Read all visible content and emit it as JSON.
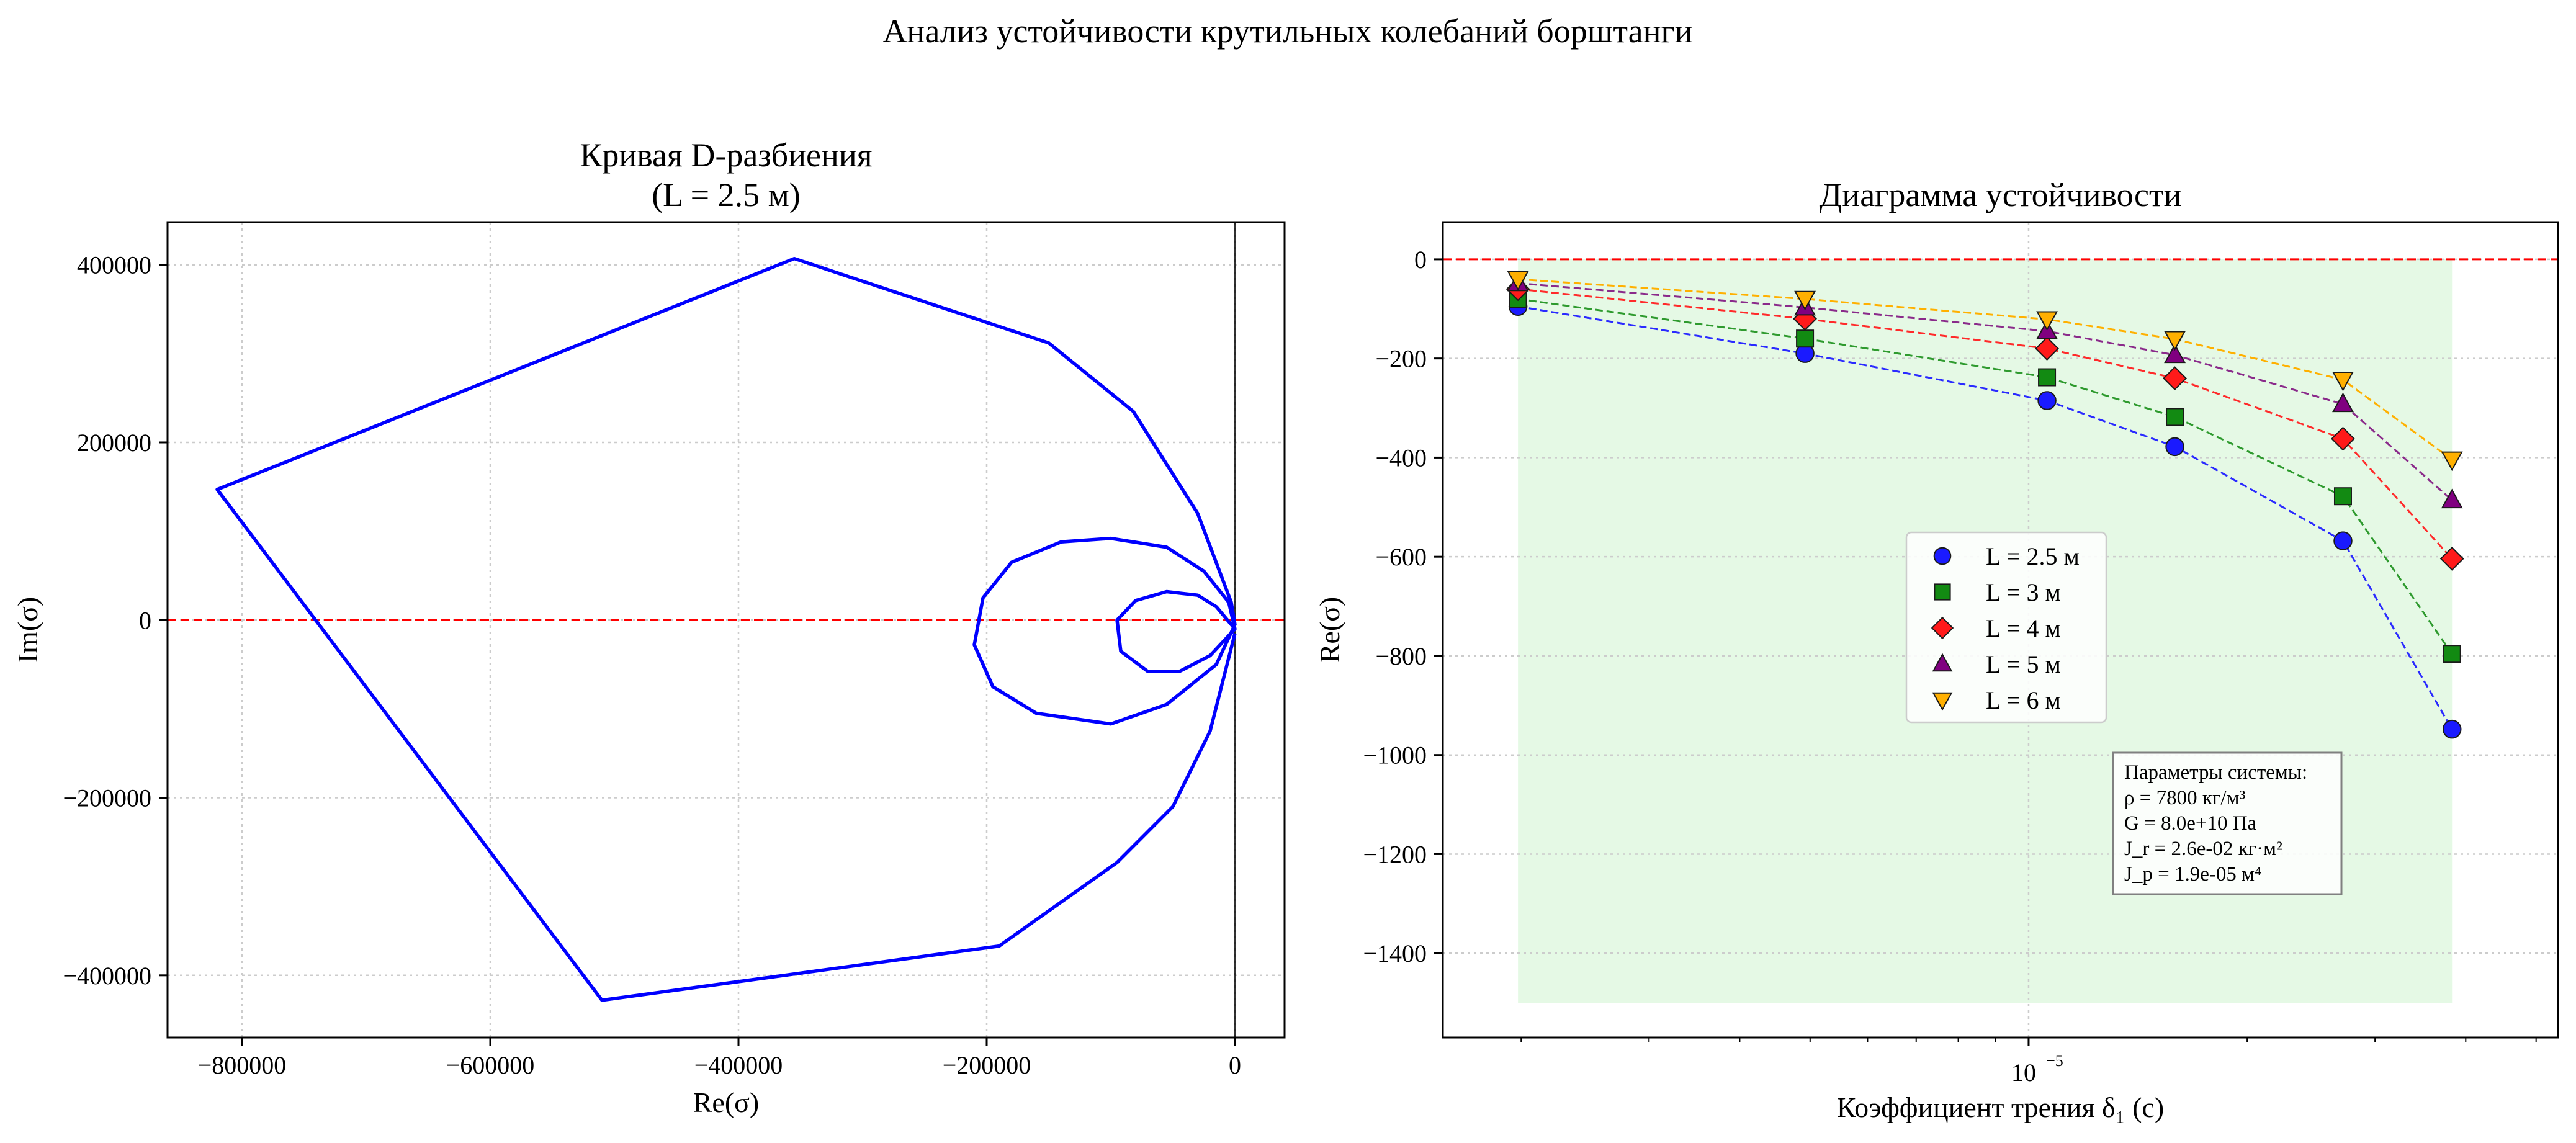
{
  "suptitle": "Анализ устойчивости крутильных колебаний борштанги",
  "chart_data": [
    {
      "type": "line",
      "title_lines": [
        "Кривая D-разбиения",
        "(L = 2.5 м)"
      ],
      "xlabel": "Re(σ)",
      "ylabel": "Im(σ)",
      "xlim": [
        -860000,
        40000
      ],
      "ylim": [
        -470000,
        448000
      ],
      "xticks": [
        {
          "v": -800000,
          "label": "−800000"
        },
        {
          "v": -600000,
          "label": "−600000"
        },
        {
          "v": -400000,
          "label": "−400000"
        },
        {
          "v": -200000,
          "label": "−200000"
        },
        {
          "v": 0,
          "label": "0"
        }
      ],
      "yticks": [
        {
          "v": 400000,
          "label": "400000"
        },
        {
          "v": 200000,
          "label": "200000"
        },
        {
          "v": 0,
          "label": "0"
        },
        {
          "v": -200000,
          "label": "−200000"
        },
        {
          "v": -400000,
          "label": "−400000"
        }
      ],
      "grid": true,
      "reference_lines": [
        {
          "axis": "y",
          "value": 0,
          "color": "#ff0000",
          "style": "dashed"
        },
        {
          "axis": "x",
          "value": 0,
          "color": "#000000",
          "style": "solid"
        }
      ],
      "series": [
        {
          "color": "#0000ff",
          "points": [
            [
              0,
              -15000
            ],
            [
              -20000,
              -125000
            ],
            [
              -50000,
              -210000
            ],
            [
              -95000,
              -273000
            ],
            [
              -190000,
              -367000
            ],
            [
              -510000,
              -428000
            ],
            [
              -820000,
              147000
            ],
            [
              -355000,
              407000
            ],
            [
              -150000,
              312000
            ],
            [
              -82000,
              235000
            ],
            [
              -30000,
              120000
            ],
            [
              -3000,
              20000
            ],
            [
              0,
              -5000
            ],
            [
              -15000,
              -50000
            ],
            [
              -55000,
              -95000
            ],
            [
              -100000,
              -117000
            ],
            [
              -160000,
              -105000
            ],
            [
              -195000,
              -75000
            ],
            [
              -210000,
              -28000
            ],
            [
              -203000,
              25000
            ],
            [
              -180000,
              65000
            ],
            [
              -140000,
              88000
            ],
            [
              -100000,
              92000
            ],
            [
              -55000,
              82000
            ],
            [
              -25000,
              55000
            ],
            [
              -5000,
              20000
            ],
            [
              0,
              -10000
            ],
            [
              -15000,
              15000
            ],
            [
              -30000,
              28000
            ],
            [
              -55000,
              32000
            ],
            [
              -80000,
              22000
            ],
            [
              -95000,
              0
            ],
            [
              -92000,
              -35000
            ],
            [
              -70000,
              -58000
            ],
            [
              -45000,
              -58000
            ],
            [
              -20000,
              -40000
            ],
            [
              0,
              -10000
            ]
          ]
        }
      ]
    },
    {
      "type": "scatter",
      "title_lines": [
        "Диаграмма устойчивости"
      ],
      "xlabel": "Коэффициент трения δ₁ (с)",
      "ylabel": "Re(σ)",
      "x_scale": "log",
      "xlim": [
        1.56e-06,
        5.36e-05
      ],
      "ylim": [
        -1570,
        75
      ],
      "xticks": [
        {
          "v": 1e-05,
          "label": "10",
          "sup": "−5"
        }
      ],
      "yticks": [
        {
          "v": 0,
          "label": "0"
        },
        {
          "v": -200,
          "label": "−200"
        },
        {
          "v": -400,
          "label": "−400"
        },
        {
          "v": -600,
          "label": "−600"
        },
        {
          "v": -800,
          "label": "−800"
        },
        {
          "v": -1000,
          "label": "−1000"
        },
        {
          "v": -1200,
          "label": "−1200"
        },
        {
          "v": -1400,
          "label": "−1400"
        }
      ],
      "grid": true,
      "reference_lines": [
        {
          "axis": "y",
          "value": 0,
          "color": "#ff0000",
          "style": "dashed"
        }
      ],
      "stable_region": {
        "x": [
          1.98e-06,
          3.83e-05
        ],
        "y": [
          -1500,
          0
        ],
        "color": "#dcf7dc"
      },
      "legend_position": "center",
      "series": [
        {
          "name": "L = 2.5 м",
          "marker": "circle",
          "color": "#1a1aff",
          "line_color": "#2a2aff",
          "x": [
            1.98e-06,
            4.92e-06,
            1.06e-05,
            1.59e-05,
            2.71e-05,
            3.83e-05
          ],
          "y": [
            -95,
            -190,
            -285,
            -378,
            -568,
            -948
          ]
        },
        {
          "name": "L = 3 м",
          "marker": "square",
          "color": "#128a12",
          "line_color": "#2e9a2e",
          "x": [
            1.98e-06,
            4.92e-06,
            1.06e-05,
            1.59e-05,
            2.71e-05,
            3.83e-05
          ],
          "y": [
            -80,
            -160,
            -238,
            -318,
            -478,
            -796
          ]
        },
        {
          "name": "L = 4 м",
          "marker": "diamond",
          "color": "#ff1a1a",
          "line_color": "#ff2a2a",
          "x": [
            1.98e-06,
            4.92e-06,
            1.06e-05,
            1.59e-05,
            2.71e-05,
            3.83e-05
          ],
          "y": [
            -60,
            -120,
            -180,
            -240,
            -362,
            -604
          ]
        },
        {
          "name": "L = 5 м",
          "marker": "triangle-up",
          "color": "#800080",
          "line_color": "#8a2a8a",
          "x": [
            1.98e-06,
            4.92e-06,
            1.06e-05,
            1.59e-05,
            2.71e-05,
            3.83e-05
          ],
          "y": [
            -48,
            -97,
            -145,
            -193,
            -292,
            -486
          ]
        },
        {
          "name": "L = 6 м",
          "marker": "triangle-down",
          "color": "#ffb000",
          "line_color": "#ffb000",
          "x": [
            1.98e-06,
            4.92e-06,
            1.06e-05,
            1.59e-05,
            2.71e-05,
            3.83e-05
          ],
          "y": [
            -40,
            -80,
            -121,
            -161,
            -243,
            -404
          ]
        }
      ],
      "annotation": {
        "lines": [
          "Параметры системы:",
          "ρ = 7800 кг/м³",
          "G = 8.0e+10 Па",
          "J_r = 2.6e-02 кг·м²",
          "J_p = 1.9e-05 м⁴"
        ]
      }
    }
  ]
}
